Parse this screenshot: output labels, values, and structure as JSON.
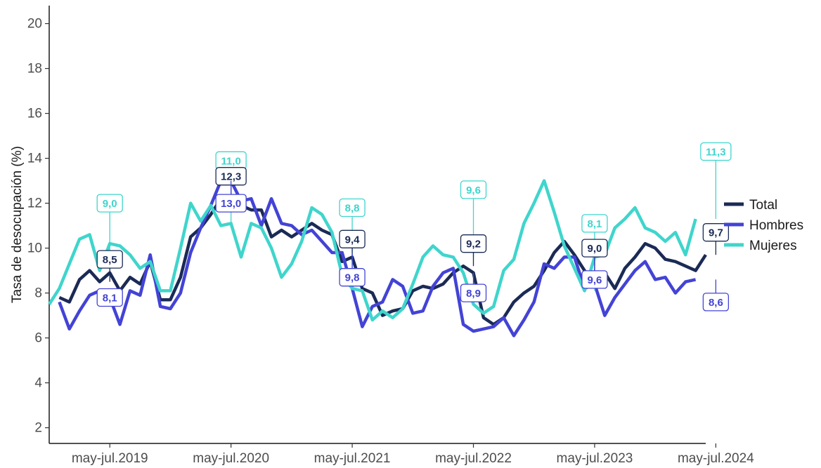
{
  "chart_data": {
    "type": "line",
    "title": "",
    "xlabel": "",
    "ylabel": "Tasa de desocupación (%)",
    "ylim": [
      1.3,
      20.8
    ],
    "y_ticks": [
      2,
      4,
      6,
      8,
      10,
      12,
      14,
      16,
      18,
      20
    ],
    "x_range": [
      -1,
      64
    ],
    "x_ticks": [
      {
        "i": 5,
        "label": "may-jul.2019"
      },
      {
        "i": 17,
        "label": "may-jul.2020"
      },
      {
        "i": 29,
        "label": "may-jul.2021"
      },
      {
        "i": 41,
        "label": "may-jul.2022"
      },
      {
        "i": 53,
        "label": "may-jul.2023"
      },
      {
        "i": 65,
        "label": "may-jul.2024"
      }
    ],
    "grid": false,
    "legend": "right",
    "series": [
      {
        "name": "Total",
        "color": "#1b2a55",
        "start": 0,
        "values": [
          7.8,
          7.6,
          8.6,
          9.0,
          8.5,
          8.9,
          8.1,
          8.7,
          8.4,
          9.4,
          7.7,
          7.7,
          8.7,
          10.5,
          10.9,
          11.5,
          12.2,
          12.3,
          11.9,
          11.7,
          11.7,
          10.5,
          10.8,
          10.5,
          10.8,
          11.1,
          10.8,
          10.6,
          9.4,
          9.6,
          8.2,
          8.0,
          7.0,
          7.2,
          7.3,
          8.1,
          8.3,
          8.2,
          8.4,
          8.9,
          9.2,
          8.9,
          6.9,
          6.6,
          6.9,
          7.6,
          8.0,
          8.3,
          9.0,
          9.8,
          10.3,
          9.7,
          9.0,
          8.4,
          8.9,
          8.2,
          9.1,
          9.6,
          10.2,
          10.0,
          9.5,
          9.4,
          9.2,
          9.0,
          9.7
        ]
      },
      {
        "name": "Hombres",
        "color": "#4343d6",
        "start": 0,
        "values": [
          7.6,
          6.4,
          7.2,
          7.9,
          8.1,
          7.8,
          6.6,
          8.1,
          7.9,
          9.7,
          7.4,
          7.3,
          8.0,
          9.8,
          10.9,
          11.9,
          13.0,
          13.0,
          12.1,
          12.2,
          11.0,
          12.2,
          11.1,
          11.0,
          10.6,
          10.8,
          10.3,
          9.8,
          9.8,
          8.2,
          6.5,
          7.4,
          7.6,
          8.6,
          8.3,
          7.1,
          7.2,
          8.3,
          8.9,
          9.1,
          6.6,
          6.3,
          6.4,
          6.5,
          6.9,
          6.1,
          6.8,
          7.6,
          9.3,
          9.1,
          9.6,
          9.6,
          8.2,
          8.4,
          7.0,
          7.8,
          8.4,
          9.0,
          9.4,
          8.6,
          8.7,
          8.0,
          8.5,
          8.6
        ]
      },
      {
        "name": "Mujeres",
        "color": "#3fd5cc",
        "start": -1,
        "values": [
          7.5,
          8.2,
          9.3,
          10.4,
          10.6,
          9.0,
          10.2,
          10.1,
          9.7,
          9.1,
          9.4,
          8.1,
          8.1,
          10.0,
          12.0,
          11.2,
          11.9,
          11.0,
          11.1,
          9.6,
          11.1,
          10.9,
          10.0,
          8.7,
          9.3,
          10.3,
          11.8,
          11.5,
          10.7,
          8.8,
          8.2,
          8.1,
          6.8,
          7.2,
          6.9,
          7.3,
          8.4,
          9.6,
          10.1,
          9.7,
          9.6,
          8.9,
          7.5,
          7.1,
          7.4,
          9.0,
          9.5,
          11.1,
          12.0,
          13.0,
          11.6,
          10.1,
          9.1,
          8.1,
          9.6,
          9.7,
          10.9,
          11.3,
          11.8,
          10.9,
          10.7,
          10.3,
          10.7,
          9.7,
          11.3
        ]
      }
    ],
    "annotations": [
      {
        "series": "Mujeres",
        "i": 5,
        "value": 9.0,
        "label": "9,0",
        "label_y": 12.0
      },
      {
        "series": "Total",
        "i": 5,
        "value": 8.5,
        "label": "8,5",
        "label_y": 9.5
      },
      {
        "series": "Hombres",
        "i": 5,
        "value": 8.1,
        "label": "8,1",
        "label_y": 7.8
      },
      {
        "series": "Mujeres",
        "i": 17,
        "value": 11.0,
        "label": "11,0",
        "label_y": 13.9
      },
      {
        "series": "Total",
        "i": 17,
        "value": 12.3,
        "label": "12,3",
        "label_y": 13.2
      },
      {
        "series": "Hombres",
        "i": 17,
        "value": 13.0,
        "label": "13,0",
        "label_y": 12.0
      },
      {
        "series": "Mujeres",
        "i": 29,
        "value": 8.8,
        "label": "8,8",
        "label_y": 11.8
      },
      {
        "series": "Total",
        "i": 29,
        "value": 9.4,
        "label": "9,4",
        "label_y": 10.4
      },
      {
        "series": "Hombres",
        "i": 29,
        "value": 9.8,
        "label": "9,8",
        "label_y": 8.7
      },
      {
        "series": "Mujeres",
        "i": 41,
        "value": 9.6,
        "label": "9,6",
        "label_y": 12.6
      },
      {
        "series": "Total",
        "i": 41,
        "value": 9.2,
        "label": "9,2",
        "label_y": 10.2
      },
      {
        "series": "Hombres",
        "i": 41,
        "value": 8.9,
        "label": "8,9",
        "label_y": 8.0
      },
      {
        "series": "Mujeres",
        "i": 53,
        "value": 8.1,
        "label": "8,1",
        "label_y": 11.1
      },
      {
        "series": "Total",
        "i": 53,
        "value": 9.0,
        "label": "9,0",
        "label_y": 10.0
      },
      {
        "series": "Hombres",
        "i": 53,
        "value": 9.6,
        "label": "9,6",
        "label_y": 8.6
      },
      {
        "series": "Mujeres",
        "i": 65,
        "value": 11.3,
        "label": "11,3",
        "label_y": 14.3
      },
      {
        "series": "Total",
        "i": 65,
        "value": 9.7,
        "label": "9,7",
        "label_y": 10.7
      },
      {
        "series": "Hombres",
        "i": 65,
        "value": 8.6,
        "label": "8,6",
        "label_y": 7.6
      }
    ]
  }
}
